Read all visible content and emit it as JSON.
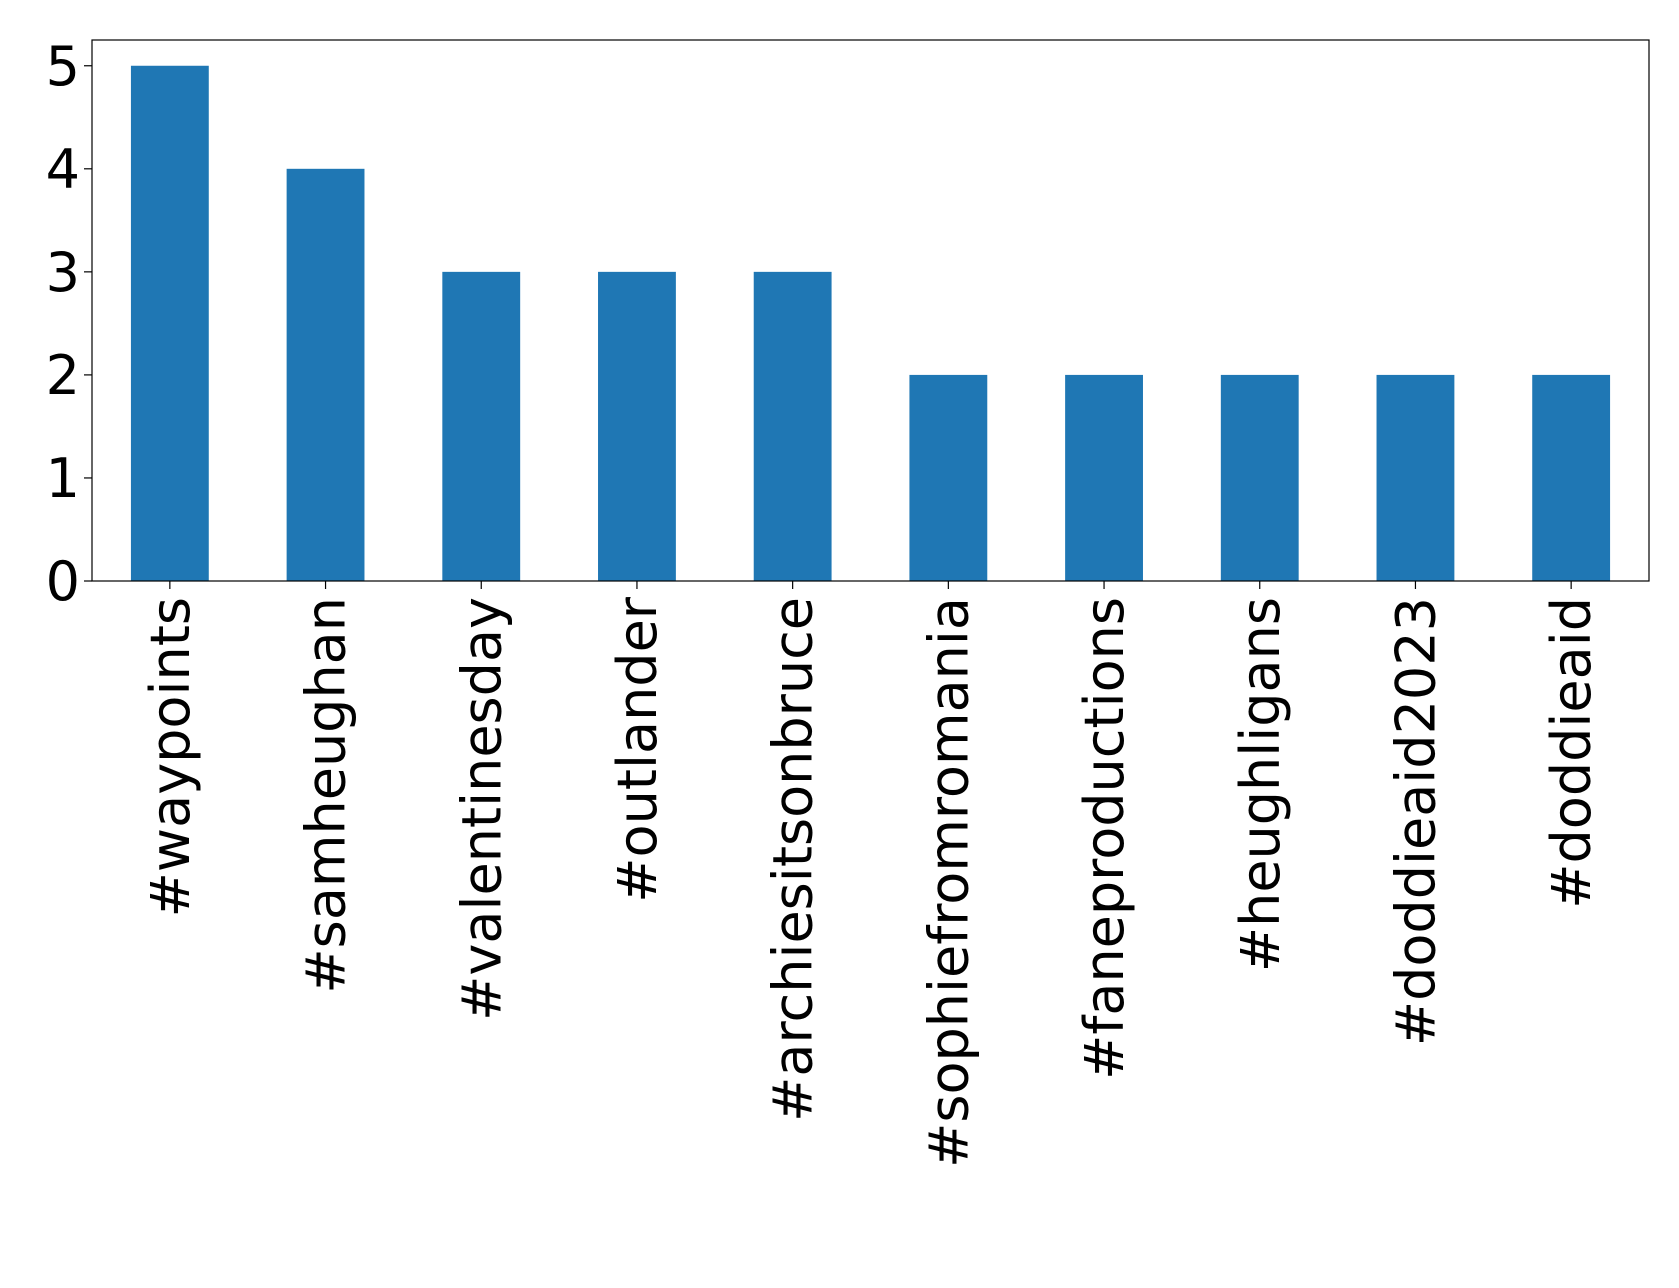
{
  "chart_data": {
    "type": "bar",
    "categories": [
      "#waypoints",
      "#samheughan",
      "#valentinesday",
      "#outlander",
      "#archiesitsonbruce",
      "#sophiefromromania",
      "#faneproductions",
      "#heughligans",
      "#doddieaid2023",
      "#doddieaid"
    ],
    "values": [
      5,
      4,
      3,
      3,
      3,
      2,
      2,
      2,
      2,
      2
    ],
    "color": "#1f77b4",
    "ylim": [
      0,
      5.25
    ],
    "yticks": [
      0,
      1,
      2,
      3,
      4,
      5
    ],
    "grid": false
  }
}
